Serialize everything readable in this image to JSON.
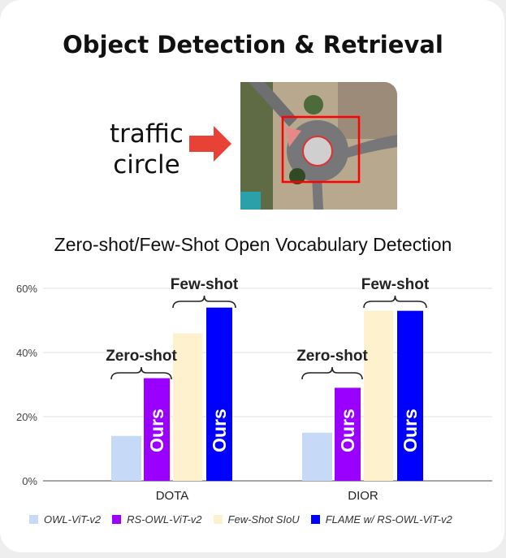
{
  "header": {
    "title": "Object Detection & Retrieval"
  },
  "example": {
    "query_line1": "traffic",
    "query_line2": "circle",
    "arrow_icon": "right-arrow-icon",
    "arrow_color": "#e84135",
    "box_color": "#ff0000"
  },
  "chart_data": {
    "type": "bar",
    "title": "Zero-shot/Few-Shot Open Vocabulary Detection",
    "categories": [
      "DOTA",
      "DIOR"
    ],
    "ylim": [
      0,
      60
    ],
    "yticks": [
      "0%",
      "20%",
      "40%",
      "60%"
    ],
    "grid": true,
    "legend_position": "bottom",
    "series": [
      {
        "name": "OWL-ViT-v2",
        "color": "#c6daf8",
        "values": [
          14,
          15
        ]
      },
      {
        "name": "RS-OWL-ViT-v2",
        "color": "#9900ff",
        "values": [
          32,
          29
        ],
        "bar_label": "Ours"
      },
      {
        "name": "Few-Shot SIoU",
        "color": "#fdf2cd",
        "values": [
          46,
          53
        ]
      },
      {
        "name": "FLAME w/ RS-OWL-ViT-v2",
        "color": "#0000ff",
        "values": [
          54,
          53
        ],
        "bar_label": "Ours"
      }
    ],
    "annotations": {
      "zero_shot": "Zero-shot",
      "few_shot": "Few-shot"
    }
  }
}
